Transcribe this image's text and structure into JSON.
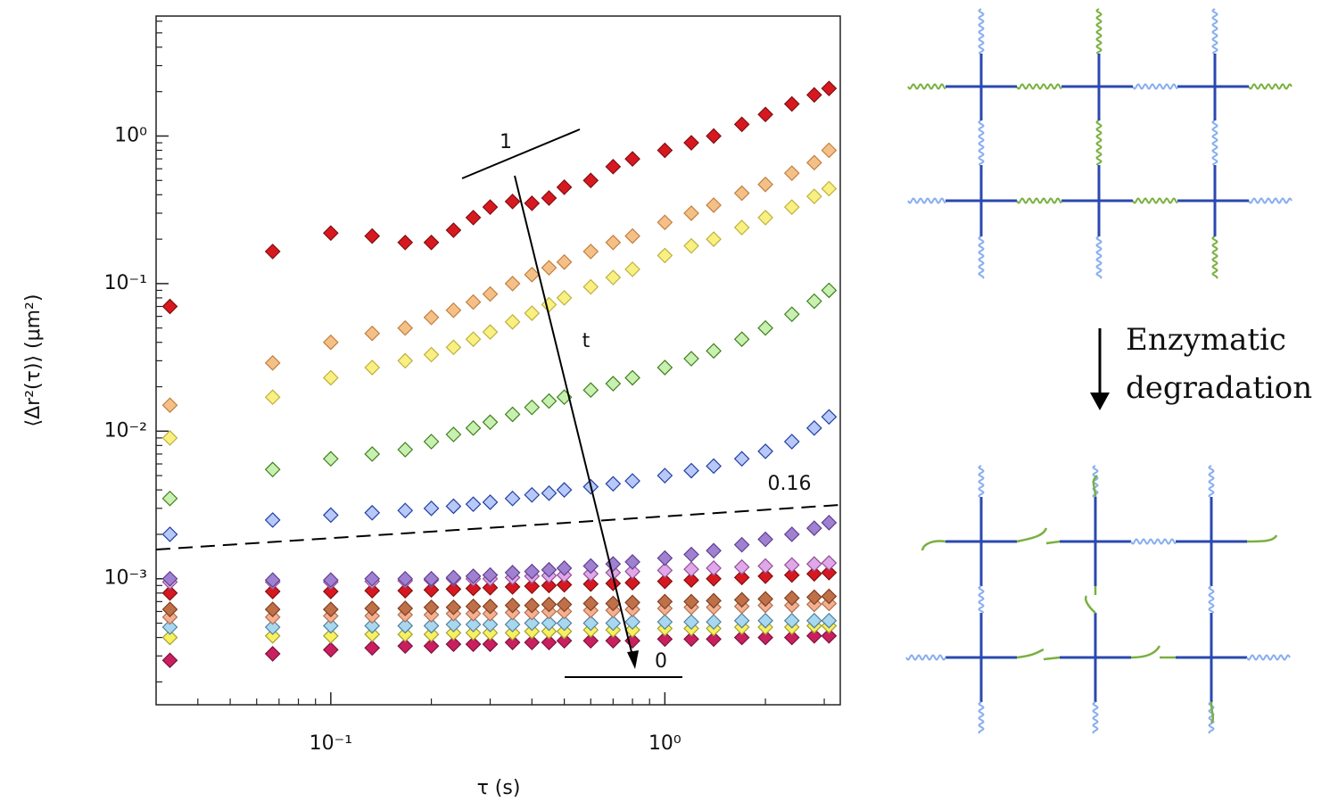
{
  "chart_data": {
    "type": "scatter",
    "xlabel": "τ (s)",
    "ylabel": "⟨Δr²(τ)⟩ (μm²)",
    "xscale": "log",
    "yscale": "log",
    "xlim": [
      0.03,
      3.35
    ],
    "ylim": [
      0.00014,
      6.5
    ],
    "xticks": [
      {
        "value": 0.1,
        "label": "10⁻¹"
      },
      {
        "value": 1,
        "label": "10⁰"
      }
    ],
    "yticks": [
      {
        "value": 0.001,
        "label": "10⁻³"
      },
      {
        "value": 0.01,
        "label": "10⁻²"
      },
      {
        "value": 0.1,
        "label": "10⁻¹"
      },
      {
        "value": 1,
        "label": "10⁰"
      }
    ],
    "xticks_minor": [
      0.04,
      0.05,
      0.06,
      0.07,
      0.08,
      0.09,
      0.2,
      0.3,
      0.4,
      0.5,
      0.6,
      0.7,
      0.8,
      0.9,
      2,
      3
    ],
    "yticks_minor": [
      0.0002,
      0.0003,
      0.0004,
      0.0005,
      0.0006,
      0.0007,
      0.0008,
      0.0009,
      0.002,
      0.003,
      0.004,
      0.005,
      0.006,
      0.007,
      0.008,
      0.009,
      0.02,
      0.03,
      0.04,
      0.05,
      0.06,
      0.07,
      0.08,
      0.09,
      0.2,
      0.3,
      0.4,
      0.5,
      0.6,
      0.7,
      0.8,
      0.9,
      2,
      3,
      4,
      5,
      6
    ],
    "annotations": {
      "slope_high": "1",
      "slope_low": "0",
      "arrow": "t",
      "threshold": "0.16"
    },
    "marker": "diamond",
    "x": [
      0.033,
      0.067,
      0.1,
      0.133,
      0.167,
      0.2,
      0.233,
      0.267,
      0.3,
      0.35,
      0.4,
      0.45,
      0.5,
      0.6,
      0.7,
      0.8,
      1.0,
      1.2,
      1.4,
      1.7,
      2.0,
      2.4,
      2.8,
      3.1
    ],
    "series": [
      {
        "color": "#c8205f",
        "edgecolor": "#801040",
        "values": [
          0.00028,
          0.00031,
          0.00033,
          0.00034,
          0.00035,
          0.00035,
          0.00036,
          0.00036,
          0.00036,
          0.00037,
          0.00037,
          0.00037,
          0.00038,
          0.00038,
          0.00038,
          0.00038,
          0.00039,
          0.00039,
          0.00039,
          0.0004,
          0.0004,
          0.0004,
          0.00041,
          0.00041
        ]
      },
      {
        "color": "#f8f060",
        "edgecolor": "#a0a030",
        "values": [
          0.0004,
          0.00041,
          0.00041,
          0.00042,
          0.00042,
          0.00042,
          0.00043,
          0.00043,
          0.00043,
          0.00043,
          0.00044,
          0.00044,
          0.00044,
          0.00045,
          0.00045,
          0.00045,
          0.00046,
          0.00046,
          0.00046,
          0.00047,
          0.00047,
          0.00047,
          0.00048,
          0.00048
        ]
      },
      {
        "color": "#a8d8f0",
        "edgecolor": "#5080a0",
        "values": [
          0.00047,
          0.00047,
          0.00048,
          0.00048,
          0.00048,
          0.00048,
          0.00049,
          0.00049,
          0.00049,
          0.00049,
          0.0005,
          0.0005,
          0.0005,
          0.0005,
          0.0005,
          0.00051,
          0.00051,
          0.00051,
          0.00051,
          0.00052,
          0.00052,
          0.00052,
          0.00052,
          0.00052
        ]
      },
      {
        "color": "#f4b090",
        "edgecolor": "#b07050",
        "values": [
          0.00055,
          0.00055,
          0.00056,
          0.00056,
          0.00057,
          0.00057,
          0.00058,
          0.00058,
          0.00058,
          0.00059,
          0.00059,
          0.0006,
          0.0006,
          0.00061,
          0.00061,
          0.00062,
          0.00063,
          0.00064,
          0.00064,
          0.00065,
          0.00066,
          0.00066,
          0.00067,
          0.00068
        ]
      },
      {
        "color": "#c07048",
        "edgecolor": "#804020",
        "values": [
          0.00062,
          0.00062,
          0.00062,
          0.00063,
          0.00063,
          0.00064,
          0.00064,
          0.00065,
          0.00065,
          0.00066,
          0.00066,
          0.00067,
          0.00067,
          0.00068,
          0.00068,
          0.00069,
          0.0007,
          0.0007,
          0.00071,
          0.00072,
          0.00073,
          0.00074,
          0.00075,
          0.00076
        ]
      },
      {
        "color": "#d81820",
        "edgecolor": "#801010",
        "values": [
          0.0008,
          0.00082,
          0.00082,
          0.00083,
          0.00083,
          0.00084,
          0.00085,
          0.00086,
          0.00087,
          0.00088,
          0.00089,
          0.0009,
          0.00091,
          0.00092,
          0.00093,
          0.00094,
          0.00096,
          0.00098,
          0.001,
          0.00102,
          0.00104,
          0.00106,
          0.00108,
          0.0011
        ]
      },
      {
        "color": "#e0a8e8",
        "edgecolor": "#905098",
        "values": [
          0.00095,
          0.00095,
          0.00095,
          0.00096,
          0.00097,
          0.00098,
          0.001,
          0.001,
          0.001,
          0.00102,
          0.00104,
          0.00105,
          0.00106,
          0.00108,
          0.0011,
          0.00112,
          0.00114,
          0.00116,
          0.00118,
          0.0012,
          0.00122,
          0.00124,
          0.00126,
          0.00128
        ]
      },
      {
        "color": "#a080d0",
        "edgecolor": "#604090",
        "values": [
          0.001,
          0.00098,
          0.00098,
          0.001,
          0.001,
          0.001,
          0.00102,
          0.00104,
          0.00106,
          0.0011,
          0.00112,
          0.00115,
          0.00118,
          0.00122,
          0.00126,
          0.0013,
          0.00138,
          0.00146,
          0.00155,
          0.0017,
          0.00185,
          0.002,
          0.0022,
          0.0024
        ]
      },
      {
        "color": "#b8c8f8",
        "edgecolor": "#2040a0",
        "values": [
          0.002,
          0.0025,
          0.0027,
          0.0028,
          0.0029,
          0.003,
          0.0031,
          0.0032,
          0.0033,
          0.0035,
          0.0037,
          0.0038,
          0.004,
          0.0042,
          0.0044,
          0.0046,
          0.005,
          0.0054,
          0.0058,
          0.0065,
          0.0073,
          0.0085,
          0.0105,
          0.0125
        ]
      },
      {
        "color": "#c8f0b0",
        "edgecolor": "#408020",
        "values": [
          0.0035,
          0.0055,
          0.0065,
          0.007,
          0.0075,
          0.0085,
          0.0095,
          0.0105,
          0.0115,
          0.013,
          0.0145,
          0.016,
          0.017,
          0.019,
          0.021,
          0.023,
          0.027,
          0.031,
          0.035,
          0.042,
          0.05,
          0.062,
          0.076,
          0.09
        ]
      },
      {
        "color": "#f8f080",
        "edgecolor": "#c0b040",
        "values": [
          0.009,
          0.017,
          0.023,
          0.027,
          0.03,
          0.033,
          0.037,
          0.042,
          0.047,
          0.055,
          0.063,
          0.072,
          0.08,
          0.095,
          0.11,
          0.125,
          0.155,
          0.18,
          0.2,
          0.24,
          0.28,
          0.33,
          0.39,
          0.44
        ]
      },
      {
        "color": "#f5c088",
        "edgecolor": "#c08040",
        "values": [
          0.015,
          0.029,
          0.04,
          0.046,
          0.05,
          0.059,
          0.066,
          0.075,
          0.085,
          0.1,
          0.115,
          0.128,
          0.14,
          0.165,
          0.19,
          0.21,
          0.26,
          0.3,
          0.34,
          0.41,
          0.47,
          0.56,
          0.66,
          0.8
        ]
      },
      {
        "color": "#d81820",
        "edgecolor": "#801010",
        "values": [
          0.07,
          0.165,
          0.22,
          0.21,
          0.19,
          0.19,
          0.23,
          0.28,
          0.33,
          0.36,
          0.35,
          0.38,
          0.45,
          0.5,
          0.62,
          0.7,
          0.8,
          0.9,
          1.0,
          1.2,
          1.4,
          1.65,
          1.9,
          2.1
        ]
      }
    ]
  },
  "diagram": {
    "label": [
      "Enzymatic",
      "degradation"
    ]
  }
}
